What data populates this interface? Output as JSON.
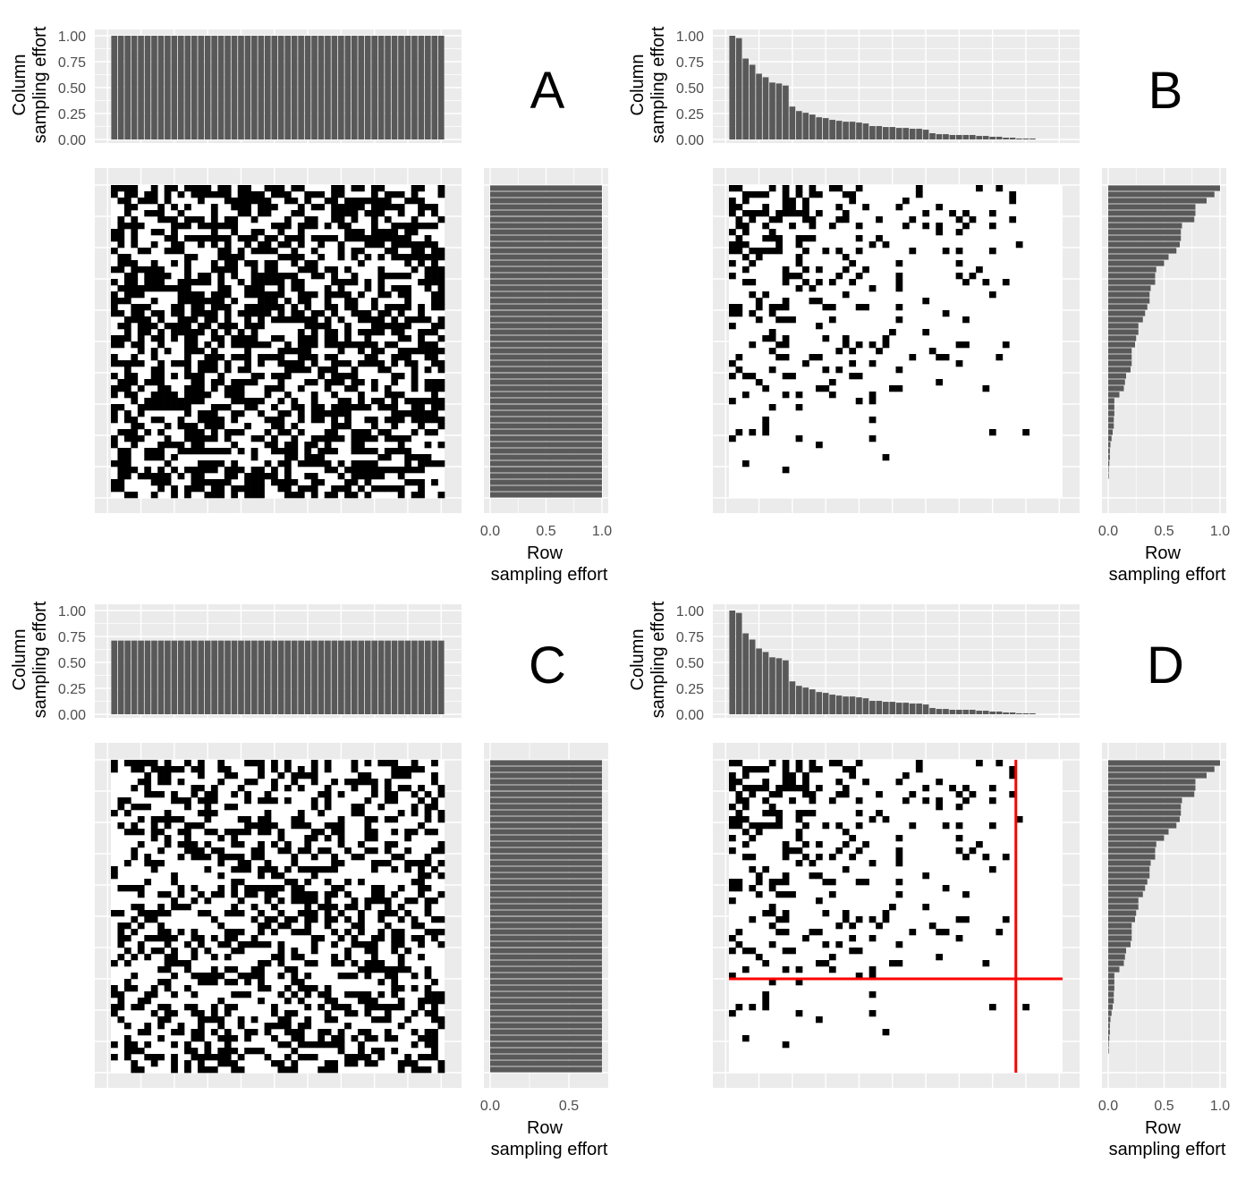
{
  "chart_data": [
    {
      "panel": "A",
      "type": "heatmap",
      "letter": "A",
      "n_rows": 50,
      "n_cols": 50,
      "col_effort": [
        1,
        1,
        1,
        1,
        1,
        1,
        1,
        1,
        1,
        1,
        1,
        1,
        1,
        1,
        1,
        1,
        1,
        1,
        1,
        1,
        1,
        1,
        1,
        1,
        1,
        1,
        1,
        1,
        1,
        1,
        1,
        1,
        1,
        1,
        1,
        1,
        1,
        1,
        1,
        1,
        1,
        1,
        1,
        1,
        1,
        1,
        1,
        1,
        1,
        1
      ],
      "row_effort": [
        1,
        1,
        1,
        1,
        1,
        1,
        1,
        1,
        1,
        1,
        1,
        1,
        1,
        1,
        1,
        1,
        1,
        1,
        1,
        1,
        1,
        1,
        1,
        1,
        1,
        1,
        1,
        1,
        1,
        1,
        1,
        1,
        1,
        1,
        1,
        1,
        1,
        1,
        1,
        1,
        1,
        1,
        1,
        1,
        1,
        1,
        1,
        1,
        1,
        1
      ],
      "col_axis": {
        "title": [
          "Column",
          "sampling effort"
        ],
        "ticks": [
          "0.00",
          "0.25",
          "0.50",
          "0.75",
          "1.00"
        ],
        "ylim": [
          0,
          1
        ]
      },
      "row_axis": {
        "title": [
          "Row",
          "sampling effort"
        ],
        "ticks": [
          "0.0",
          "0.5",
          "1.0"
        ],
        "xlim": [
          0,
          1
        ]
      }
    },
    {
      "panel": "B",
      "type": "heatmap",
      "letter": "B",
      "n_rows": 50,
      "n_cols": 50,
      "col_effort": [
        1.0,
        0.977,
        0.78,
        0.72,
        0.634,
        0.6,
        0.549,
        0.54,
        0.52,
        0.317,
        0.274,
        0.257,
        0.24,
        0.214,
        0.206,
        0.189,
        0.18,
        0.171,
        0.171,
        0.163,
        0.154,
        0.129,
        0.129,
        0.12,
        0.12,
        0.111,
        0.111,
        0.103,
        0.103,
        0.094,
        0.06,
        0.051,
        0.051,
        0.043,
        0.043,
        0.043,
        0.043,
        0.034,
        0.034,
        0.026,
        0.026,
        0.017,
        0.017,
        0.009,
        0.009,
        0.009,
        0,
        0,
        0,
        0
      ],
      "row_effort": [
        1.0,
        0.95,
        0.88,
        0.78,
        0.78,
        0.77,
        0.66,
        0.65,
        0.65,
        0.64,
        0.61,
        0.54,
        0.5,
        0.43,
        0.42,
        0.42,
        0.38,
        0.37,
        0.37,
        0.35,
        0.33,
        0.31,
        0.27,
        0.27,
        0.25,
        0.24,
        0.21,
        0.21,
        0.21,
        0.2,
        0.16,
        0.15,
        0.14,
        0.1,
        0.055,
        0.055,
        0.055,
        0.05,
        0.05,
        0.04,
        0.03,
        0.02,
        0.015,
        0.015,
        0.01,
        0.005,
        0.005,
        0,
        0,
        0
      ],
      "col_axis": {
        "title": [
          "Column",
          "sampling effort"
        ],
        "ticks": [
          "0.00",
          "0.25",
          "0.50",
          "0.75",
          "1.00"
        ],
        "ylim": [
          0,
          1
        ]
      },
      "row_axis": {
        "title": [
          "Row",
          "sampling effort"
        ],
        "ticks": [
          "0.0",
          "0.5",
          "1.0"
        ],
        "xlim": [
          0,
          1
        ]
      }
    },
    {
      "panel": "C",
      "type": "heatmap",
      "letter": "C",
      "n_rows": 50,
      "n_cols": 50,
      "col_effort": [
        0.71,
        0.71,
        0.71,
        0.71,
        0.71,
        0.71,
        0.71,
        0.71,
        0.71,
        0.71,
        0.71,
        0.71,
        0.71,
        0.71,
        0.71,
        0.71,
        0.71,
        0.71,
        0.71,
        0.71,
        0.71,
        0.71,
        0.71,
        0.71,
        0.71,
        0.71,
        0.71,
        0.71,
        0.71,
        0.71,
        0.71,
        0.71,
        0.71,
        0.71,
        0.71,
        0.71,
        0.71,
        0.71,
        0.71,
        0.71,
        0.71,
        0.71,
        0.71,
        0.71,
        0.71,
        0.71,
        0.71,
        0.71,
        0.71,
        0.71
      ],
      "row_effort": [
        0.71,
        0.71,
        0.71,
        0.71,
        0.71,
        0.71,
        0.71,
        0.71,
        0.71,
        0.71,
        0.71,
        0.71,
        0.71,
        0.71,
        0.71,
        0.71,
        0.71,
        0.71,
        0.71,
        0.71,
        0.71,
        0.71,
        0.71,
        0.71,
        0.71,
        0.71,
        0.71,
        0.71,
        0.71,
        0.71,
        0.71,
        0.71,
        0.71,
        0.71,
        0.71,
        0.71,
        0.71,
        0.71,
        0.71,
        0.71,
        0.71,
        0.71,
        0.71,
        0.71,
        0.71,
        0.71,
        0.71,
        0.71,
        0.71,
        0.71
      ],
      "col_axis": {
        "title": [
          "Column",
          "sampling effort"
        ],
        "ticks": [
          "0.00",
          "0.25",
          "0.50",
          "0.75",
          "1.00"
        ],
        "ylim": [
          0,
          1
        ]
      },
      "row_axis": {
        "title": [
          "Row",
          "sampling effort"
        ],
        "ticks": [
          "0.0",
          "0.5"
        ],
        "xlim": [
          0,
          0.71
        ]
      }
    },
    {
      "panel": "D",
      "type": "heatmap",
      "letter": "D",
      "n_rows": 50,
      "n_cols": 50,
      "col_effort": [
        1.0,
        0.977,
        0.78,
        0.72,
        0.634,
        0.6,
        0.549,
        0.54,
        0.52,
        0.317,
        0.274,
        0.257,
        0.24,
        0.214,
        0.206,
        0.189,
        0.18,
        0.171,
        0.171,
        0.163,
        0.154,
        0.129,
        0.129,
        0.12,
        0.12,
        0.111,
        0.111,
        0.103,
        0.103,
        0.094,
        0.06,
        0.051,
        0.051,
        0.043,
        0.043,
        0.043,
        0.043,
        0.034,
        0.034,
        0.026,
        0.026,
        0.017,
        0.017,
        0.009,
        0.009,
        0.009,
        0,
        0,
        0,
        0
      ],
      "row_effort": [
        1.0,
        0.95,
        0.88,
        0.78,
        0.78,
        0.77,
        0.66,
        0.65,
        0.65,
        0.64,
        0.61,
        0.54,
        0.5,
        0.43,
        0.42,
        0.42,
        0.38,
        0.37,
        0.37,
        0.35,
        0.33,
        0.31,
        0.27,
        0.27,
        0.25,
        0.24,
        0.21,
        0.21,
        0.21,
        0.2,
        0.16,
        0.15,
        0.14,
        0.1,
        0.055,
        0.055,
        0.055,
        0.05,
        0.05,
        0.04,
        0.03,
        0.02,
        0.015,
        0.015,
        0.01,
        0.005,
        0.005,
        0,
        0,
        0
      ],
      "col_axis": {
        "title": [
          "Column",
          "sampling effort"
        ],
        "ticks": [
          "0.00",
          "0.25",
          "0.50",
          "0.75",
          "1.00"
        ],
        "ylim": [
          0,
          1
        ]
      },
      "row_axis": {
        "title": [
          "Row",
          "sampling effort"
        ],
        "ticks": [
          "0.0",
          "0.5",
          "1.0"
        ],
        "xlim": [
          0,
          1
        ]
      },
      "cutoff_lines": {
        "color": "#ff0000",
        "after_column": 43,
        "after_row": 35
      }
    }
  ]
}
